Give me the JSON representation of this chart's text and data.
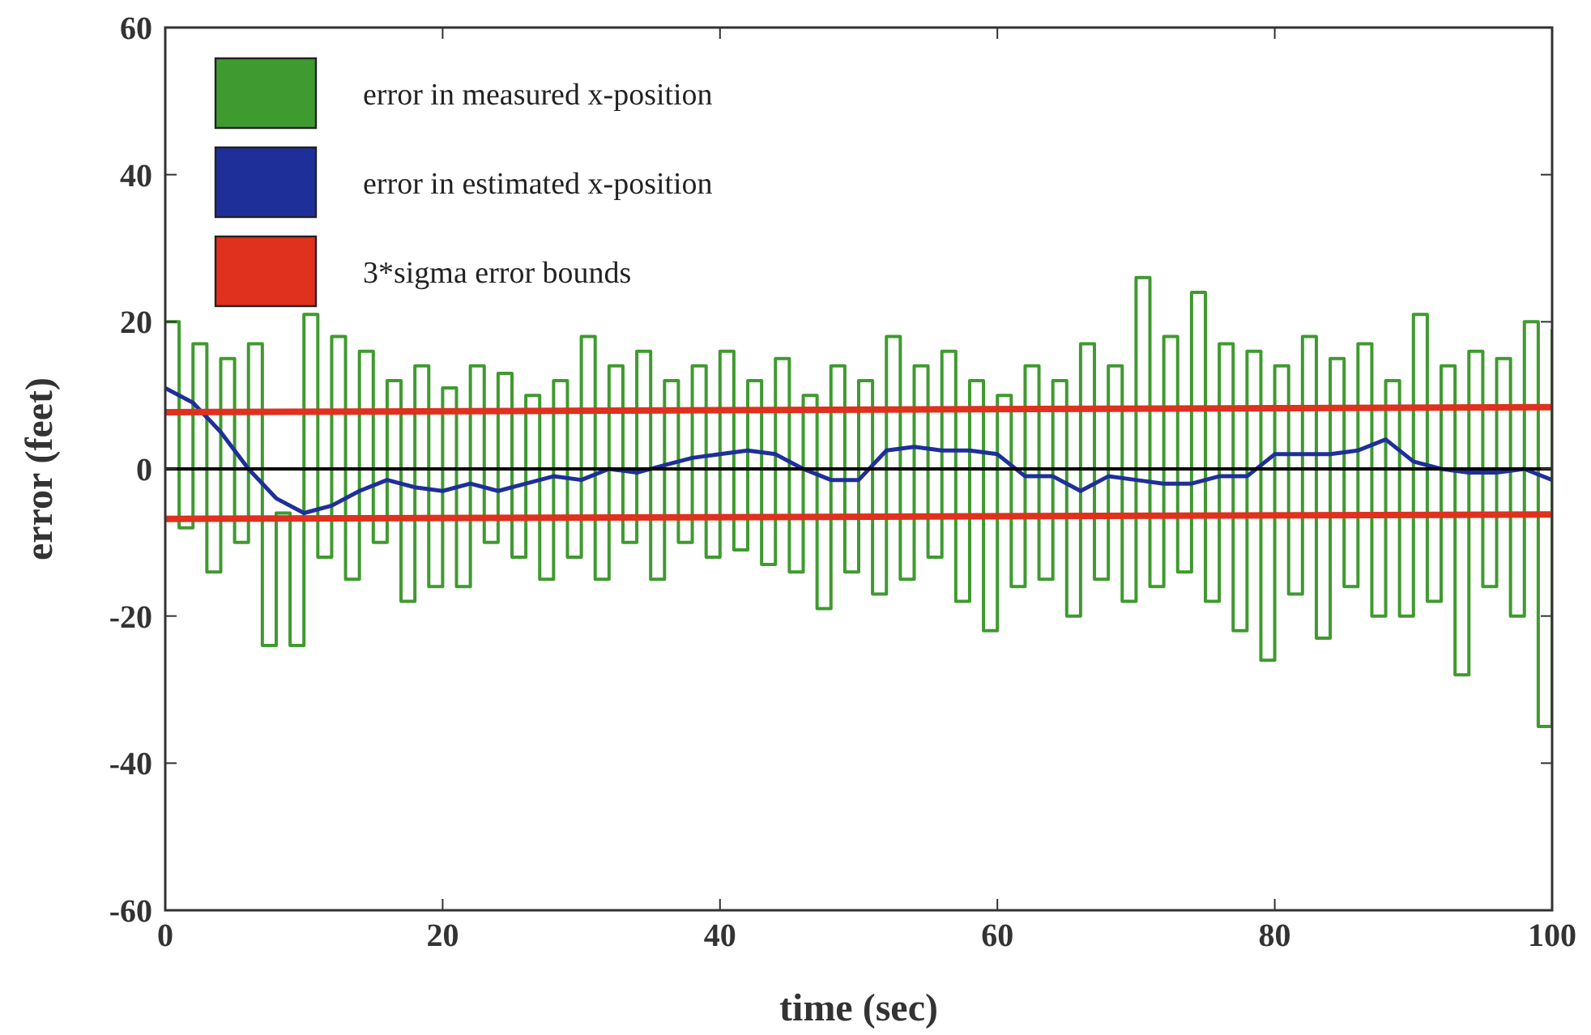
{
  "chart_data": {
    "type": "line",
    "xlabel": "time (sec)",
    "ylabel": "error (feet)",
    "xlim": [
      0,
      100
    ],
    "ylim": [
      -60,
      60
    ],
    "xticks": [
      0,
      20,
      40,
      60,
      80,
      100
    ],
    "yticks": [
      -60,
      -40,
      -20,
      0,
      20,
      40,
      60
    ],
    "legend": "top left",
    "grid": false,
    "ref_lines": [
      {
        "axis": "y",
        "value": 0,
        "color": "#000000"
      }
    ],
    "series": [
      {
        "name": "error in measured x-position",
        "type": "step",
        "color": "#3f9a2f",
        "x": [
          0,
          1,
          2,
          3,
          4,
          5,
          6,
          7,
          8,
          9,
          10,
          11,
          12,
          13,
          14,
          15,
          16,
          17,
          18,
          19,
          20,
          21,
          22,
          23,
          24,
          25,
          26,
          27,
          28,
          29,
          30,
          31,
          32,
          33,
          34,
          35,
          36,
          37,
          38,
          39,
          40,
          41,
          42,
          43,
          44,
          45,
          46,
          47,
          48,
          49,
          50,
          51,
          52,
          53,
          54,
          55,
          56,
          57,
          58,
          59,
          60,
          61,
          62,
          63,
          64,
          65,
          66,
          67,
          68,
          69,
          70,
          71,
          72,
          73,
          74,
          75,
          76,
          77,
          78,
          79,
          80,
          81,
          82,
          83,
          84,
          85,
          86,
          87,
          88,
          89,
          90,
          91,
          92,
          93,
          94,
          95,
          96,
          97,
          98,
          99,
          100
        ],
        "values": [
          20,
          -8,
          17,
          -14,
          15,
          -10,
          17,
          -24,
          -6,
          -24,
          21,
          -12,
          18,
          -15,
          16,
          -10,
          12,
          -18,
          14,
          -16,
          11,
          -16,
          14,
          -10,
          13,
          -12,
          10,
          -15,
          12,
          -12,
          18,
          -15,
          14,
          -10,
          16,
          -15,
          12,
          -10,
          14,
          -12,
          16,
          -11,
          12,
          -13,
          15,
          -14,
          10,
          -19,
          14,
          -14,
          12,
          -17,
          18,
          -15,
          14,
          -12,
          16,
          -18,
          12,
          -22,
          10,
          -16,
          14,
          -15,
          12,
          -20,
          17,
          -15,
          14,
          -18,
          26,
          -16,
          18,
          -14,
          24,
          -18,
          17,
          -22,
          16,
          -26,
          14,
          -17,
          18,
          -23,
          15,
          -16,
          17,
          -20,
          12,
          -20,
          21,
          -18,
          14,
          -28,
          16,
          -16,
          15,
          -20,
          20,
          -35,
          19
        ]
      },
      {
        "name": "error in estimated x-position",
        "color": "#1f2f9a",
        "x": [
          0,
          2,
          4,
          6,
          8,
          10,
          12,
          14,
          16,
          18,
          20,
          22,
          24,
          26,
          28,
          30,
          32,
          34,
          36,
          38,
          40,
          42,
          44,
          46,
          48,
          50,
          52,
          54,
          56,
          58,
          60,
          62,
          64,
          66,
          68,
          70,
          72,
          74,
          76,
          78,
          80,
          82,
          84,
          86,
          88,
          90,
          92,
          94,
          96,
          98,
          100
        ],
        "values": [
          11,
          9,
          5,
          0,
          -4,
          -6,
          -5,
          -3,
          -1.5,
          -2.5,
          -3,
          -2,
          -3,
          -2,
          -1,
          -1.5,
          0,
          -0.5,
          0.5,
          1.5,
          2,
          2.5,
          2,
          0,
          -1.5,
          -1.5,
          2.5,
          3,
          2.5,
          2.5,
          2,
          -1,
          -1,
          -3,
          -1,
          -1.5,
          -2,
          -2,
          -1,
          -1,
          2,
          2,
          2,
          2.5,
          4,
          1,
          0,
          -0.5,
          -0.5,
          0,
          -1.5
        ]
      },
      {
        "name": "3*sigma error bounds",
        "color": "#e0301e",
        "x": [
          0,
          100
        ],
        "values": [
          7.7,
          8.4
        ]
      },
      {
        "color": "#e0301e",
        "x": [
          0,
          100
        ],
        "values": [
          -6.8,
          -6.2
        ]
      }
    ]
  }
}
